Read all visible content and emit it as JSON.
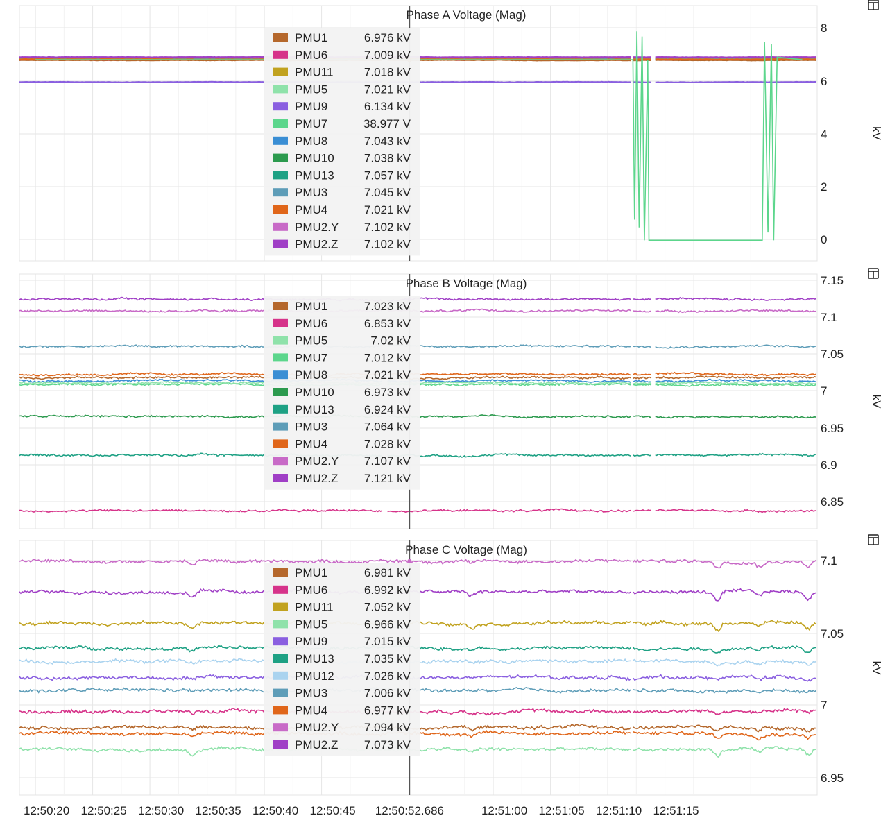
{
  "cursor": {
    "time_label": "12:50:52.686"
  },
  "time_axis": {
    "ticks": [
      "12:50:20",
      "12:50:25",
      "12:50:30",
      "12:50:35",
      "12:50:40",
      "12:50:45",
      "12:51:00",
      "12:51:05",
      "12:51:10",
      "12:51:15"
    ],
    "cursor_label": "12:50:52.686"
  },
  "colors": {
    "PMU1": "#b5682c",
    "PMU6": "#d6338a",
    "PMU11": "#c1a21f",
    "PMU5": "#8fe2aa",
    "PMU9": "#8a5fe0",
    "PMU7": "#5cd68c",
    "PMU8": "#3a8ed4",
    "PMU10": "#2c9a4e",
    "PMU13": "#1ea184",
    "PMU3": "#5e9db8",
    "PMU4": "#e0661a",
    "PMU2.Y": "#c86ac7",
    "PMU2.Z": "#a03fc6",
    "PMU12": "#aad3ef"
  },
  "chart_data": [
    {
      "type": "line",
      "title": "Phase A Voltage (Mag)",
      "ylabel": "kV",
      "ylim": [
        -0.8,
        9.1
      ],
      "yticks": [
        "8",
        "6",
        "4",
        "2",
        "0"
      ],
      "legend": [
        {
          "name": "PMU1",
          "value": "6.976 kV"
        },
        {
          "name": "PMU6",
          "value": "7.009 kV"
        },
        {
          "name": "PMU11",
          "value": "7.018 kV"
        },
        {
          "name": "PMU5",
          "value": "7.021 kV"
        },
        {
          "name": "PMU9",
          "value": "6.134 kV"
        },
        {
          "name": "PMU7",
          "value": "38.977 V"
        },
        {
          "name": "PMU8",
          "value": "7.043 kV"
        },
        {
          "name": "PMU10",
          "value": "7.038 kV"
        },
        {
          "name": "PMU13",
          "value": "7.057 kV"
        },
        {
          "name": "PMU3",
          "value": "7.045 kV"
        },
        {
          "name": "PMU4",
          "value": "7.021 kV"
        },
        {
          "name": "PMU2.Y",
          "value": "7.102 kV"
        },
        {
          "name": "PMU2.Z",
          "value": "7.102 kV"
        }
      ],
      "series_levels": [
        {
          "name": "PMU1",
          "level": 6.976
        },
        {
          "name": "PMU6",
          "level": 7.009
        },
        {
          "name": "PMU11",
          "level": 7.018
        },
        {
          "name": "PMU5",
          "level": 7.021
        },
        {
          "name": "PMU9",
          "level": 6.134
        },
        {
          "name": "PMU8",
          "level": 7.043
        },
        {
          "name": "PMU10",
          "level": 7.038
        },
        {
          "name": "PMU13",
          "level": 7.057
        },
        {
          "name": "PMU3",
          "level": 7.045
        },
        {
          "name": "PMU4",
          "level": 7.021
        },
        {
          "name": "PMU2.Y",
          "level": 7.102
        },
        {
          "name": "PMU2.Z",
          "level": 7.102
        }
      ],
      "pmu7_trace": [
        [
          0,
          7.0
        ],
        [
          52.2,
          7.0
        ],
        [
          52.35,
          0.8
        ],
        [
          52.55,
          8.1
        ],
        [
          52.75,
          0.5
        ],
        [
          53.0,
          7.9
        ],
        [
          53.2,
          0.0
        ],
        [
          53.5,
          7.0
        ],
        [
          53.6,
          0.0
        ],
        [
          63.5,
          0.0
        ],
        [
          63.7,
          7.7
        ],
        [
          64.0,
          0.3
        ],
        [
          64.3,
          7.6
        ],
        [
          64.5,
          0.0
        ],
        [
          64.8,
          7.1
        ],
        [
          67.0,
          7.0
        ]
      ],
      "gaps": [
        [
          30.4,
          30.7
        ],
        [
          52.0,
          52.2
        ],
        [
          53.8,
          54.1
        ],
        [
          71.7,
          72.0
        ]
      ]
    },
    {
      "type": "line",
      "title": "Phase B Voltage (Mag)",
      "ylabel": "kV",
      "ylim": [
        6.83,
        7.155
      ],
      "yticks": [
        "7.15",
        "7.1",
        "7.05",
        "7",
        "6.95",
        "6.9",
        "6.85"
      ],
      "legend": [
        {
          "name": "PMU1",
          "value": "7.023 kV"
        },
        {
          "name": "PMU6",
          "value": "6.853 kV"
        },
        {
          "name": "PMU5",
          "value": "7.02 kV"
        },
        {
          "name": "PMU7",
          "value": "7.012 kV"
        },
        {
          "name": "PMU8",
          "value": "7.021 kV"
        },
        {
          "name": "PMU10",
          "value": "6.973 kV"
        },
        {
          "name": "PMU13",
          "value": "6.924 kV"
        },
        {
          "name": "PMU3",
          "value": "7.064 kV"
        },
        {
          "name": "PMU4",
          "value": "7.028 kV"
        },
        {
          "name": "PMU2.Y",
          "value": "7.107 kV"
        },
        {
          "name": "PMU2.Z",
          "value": "7.121 kV"
        }
      ],
      "series_levels": [
        {
          "name": "PMU2.Z",
          "level": 7.123
        },
        {
          "name": "PMU2.Y",
          "level": 7.108
        },
        {
          "name": "PMU3",
          "level": 7.063
        },
        {
          "name": "PMU4",
          "level": 7.027
        },
        {
          "name": "PMU1",
          "level": 7.023
        },
        {
          "name": "PMU8",
          "level": 7.019
        },
        {
          "name": "PMU7",
          "level": 7.014
        },
        {
          "name": "PMU5",
          "level": 7.016
        },
        {
          "name": "PMU10",
          "level": 6.973
        },
        {
          "name": "PMU13",
          "level": 6.924
        },
        {
          "name": "PMU6",
          "level": 6.853
        }
      ],
      "gaps": [
        [
          30.4,
          30.7
        ],
        [
          52.0,
          52.2
        ],
        [
          53.8,
          54.1
        ],
        [
          71.7,
          72.0
        ]
      ]
    },
    {
      "type": "line",
      "title": "Phase C Voltage (Mag)",
      "ylabel": "kV",
      "ylim": [
        6.935,
        7.108
      ],
      "yticks": [
        "7.1",
        "7.05",
        "7",
        "6.95"
      ],
      "legend": [
        {
          "name": "PMU1",
          "value": "6.981 kV"
        },
        {
          "name": "PMU6",
          "value": "6.992 kV"
        },
        {
          "name": "PMU11",
          "value": "7.052 kV"
        },
        {
          "name": "PMU5",
          "value": "6.966 kV"
        },
        {
          "name": "PMU9",
          "value": "7.015 kV"
        },
        {
          "name": "PMU13",
          "value": "7.035 kV"
        },
        {
          "name": "PMU12",
          "value": "7.026 kV"
        },
        {
          "name": "PMU3",
          "value": "7.006 kV"
        },
        {
          "name": "PMU4",
          "value": "6.977 kV"
        },
        {
          "name": "PMU2.Y",
          "value": "7.094 kV"
        },
        {
          "name": "PMU2.Z",
          "value": "7.073 kV"
        }
      ],
      "series_levels": [
        {
          "name": "PMU2.Y",
          "level": 7.094
        },
        {
          "name": "PMU2.Z",
          "level": 7.073
        },
        {
          "name": "PMU11",
          "level": 7.052
        },
        {
          "name": "PMU13",
          "level": 7.035
        },
        {
          "name": "PMU12",
          "level": 7.026
        },
        {
          "name": "PMU9",
          "level": 7.015
        },
        {
          "name": "PMU3",
          "level": 7.006
        },
        {
          "name": "PMU6",
          "level": 6.992
        },
        {
          "name": "PMU1",
          "level": 6.981
        },
        {
          "name": "PMU4",
          "level": 6.977
        },
        {
          "name": "PMU5",
          "level": 6.966
        }
      ],
      "gaps": [
        [
          52.0,
          52.2
        ]
      ]
    }
  ]
}
